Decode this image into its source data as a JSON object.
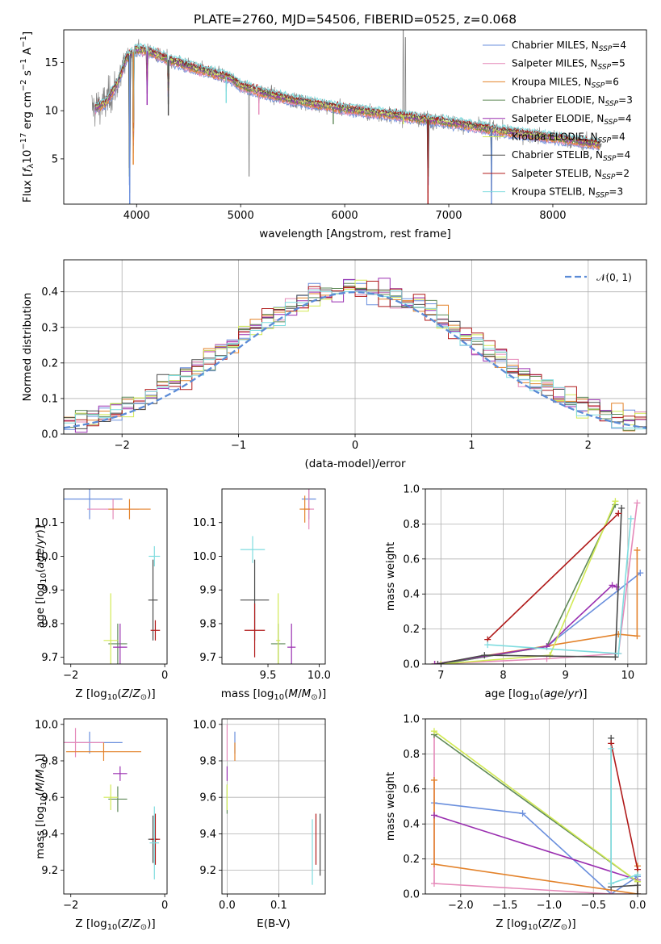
{
  "figure": {
    "title": "PLATE=2760, MJD=54506, FIBERID=0525, z=0.068"
  },
  "models": [
    {
      "name": "Chabrier MILES",
      "nssp": "4",
      "color": "#6a8fdd"
    },
    {
      "name": "Salpeter MILES",
      "nssp": "5",
      "color": "#e589b9"
    },
    {
      "name": "Kroupa MILES",
      "nssp": "6",
      "color": "#e3822a"
    },
    {
      "name": "Chabrier ELODIE",
      "nssp": "3",
      "color": "#5f8a58"
    },
    {
      "name": "Salpeter ELODIE",
      "nssp": "4",
      "color": "#9a2fb0"
    },
    {
      "name": "Kroupa ELODIE",
      "nssp": "4",
      "color": "#d2ea55"
    },
    {
      "name": "Chabrier STELIB",
      "nssp": "4",
      "color": "#4a4a4a"
    },
    {
      "name": "Salpeter STELIB",
      "nssp": "2",
      "color": "#b01a1a"
    },
    {
      "name": "Kroupa STELIB",
      "nssp": "3",
      "color": "#7fdcdf"
    }
  ],
  "chart_data": [
    {
      "id": "spectrum",
      "type": "line",
      "xlabel": "wavelength [Angstrom, rest frame]",
      "ylabel": "Flux [f_λ10^-17 erg cm^-2 s^-1 A^-1]",
      "xlim": [
        3300,
        8900
      ],
      "ylim": [
        0.3,
        18.4
      ],
      "xticks": [
        4000,
        5000,
        6000,
        7000,
        8000
      ],
      "yticks": [
        5,
        10,
        15
      ],
      "data_color": "#808080",
      "continuum": {
        "x": [
          3600,
          3700,
          3800,
          3850,
          3900,
          4000,
          4100,
          4200,
          4300,
          4400,
          4500,
          4700,
          4900,
          5000,
          5200,
          5500,
          6000,
          6500,
          7000,
          7500,
          8000,
          8500
        ],
        "y": [
          10.3,
          10.8,
          12.5,
          13.8,
          15.4,
          16.4,
          16.2,
          15.8,
          15.3,
          15.0,
          14.6,
          14.0,
          13.4,
          12.6,
          11.9,
          11.1,
          10.2,
          9.5,
          8.8,
          7.9,
          7.2,
          6.4
        ]
      },
      "absorption_dips": [
        {
          "x": 3934,
          "y": 0.3
        },
        {
          "x": 3968,
          "y": 4.4
        },
        {
          "x": 4101,
          "y": 10.6
        },
        {
          "x": 4305,
          "y": 9.5
        },
        {
          "x": 4861,
          "y": 10.8
        },
        {
          "x": 5175,
          "y": 9.6
        },
        {
          "x": 5890,
          "y": 8.6
        },
        {
          "x": 6563,
          "y": 8.6
        },
        {
          "x": 6800,
          "y": 0.3
        },
        {
          "x": 7410,
          "y": 0.3
        }
      ],
      "emission_spikes": [
        {
          "x": 6563,
          "y": 18.4
        },
        {
          "x": 6583,
          "y": 17.6
        },
        {
          "x": 5080,
          "y": 3.2
        }
      ]
    },
    {
      "id": "residuals",
      "type": "line",
      "xlabel": "(data-model)/error",
      "ylabel": "Normed distribution",
      "xlim": [
        -2.5,
        2.5
      ],
      "ylim": [
        0.0,
        0.49
      ],
      "xticks": [
        -2,
        -1,
        0,
        1,
        2
      ],
      "yticks": [
        0.0,
        0.1,
        0.2,
        0.3,
        0.4
      ],
      "gaussian_legend": "𝒩(0, 1)",
      "gaussian_color": "#5b8bd6",
      "bins": {
        "start": -2.5,
        "width": 0.1,
        "count": 50
      }
    },
    {
      "id": "age-vs-Z",
      "type": "scatter",
      "xlabel": "Z [log10(Z/Z⊙)]",
      "ylabel": "age  [log10(age/yr)]",
      "xlim": [
        -2.15,
        0.05
      ],
      "ylim": [
        9.68,
        10.2
      ],
      "xticks": [
        -2,
        0
      ],
      "yticks": [
        9.7,
        9.8,
        9.9,
        10.0,
        10.1
      ],
      "points": [
        {
          "model": 0,
          "x": -1.6,
          "y": 10.17,
          "xerr": 0.7,
          "yerr": 0.06
        },
        {
          "model": 1,
          "x": -1.1,
          "y": 10.14,
          "xerr": 0.55,
          "yerr": 0.03
        },
        {
          "model": 2,
          "x": -0.75,
          "y": 10.14,
          "xerr": 0.45,
          "yerr": 0.03
        },
        {
          "model": 3,
          "x": -1.0,
          "y": 9.74,
          "xerr": 0.2,
          "yerr": 0.06
        },
        {
          "model": 4,
          "x": -0.95,
          "y": 9.73,
          "xerr": 0.15,
          "yerr": 0.07
        },
        {
          "model": 5,
          "x": -1.15,
          "y": 9.75,
          "xerr": 0.15,
          "yerr": 0.14
        },
        {
          "model": 6,
          "x": -0.25,
          "y": 9.87,
          "xerr": 0.1,
          "yerr": 0.12
        },
        {
          "model": 7,
          "x": -0.2,
          "y": 9.78,
          "xerr": 0.1,
          "yerr": 0.03
        },
        {
          "model": 8,
          "x": -0.22,
          "y": 10.0,
          "xerr": 0.12,
          "yerr": 0.03
        }
      ]
    },
    {
      "id": "age-vs-mass",
      "type": "scatter",
      "xlabel": "mass [log10(M/M⊙)]",
      "ylabel": "",
      "xlim": [
        9.05,
        10.06
      ],
      "ylim": [
        9.68,
        10.2
      ],
      "xticks": [
        9.5,
        10.0
      ],
      "yticks": [
        9.7,
        9.8,
        9.9,
        10.0,
        10.1
      ],
      "points": [
        {
          "model": 0,
          "x": 9.9,
          "y": 10.17,
          "xerr": 0.07,
          "yerr": 0.06
        },
        {
          "model": 1,
          "x": 9.9,
          "y": 10.14,
          "xerr": 0.05,
          "yerr": 0.06
        },
        {
          "model": 2,
          "x": 9.86,
          "y": 10.14,
          "xerr": 0.05,
          "yerr": 0.04
        },
        {
          "model": 3,
          "x": 9.6,
          "y": 9.74,
          "xerr": 0.07,
          "yerr": 0.06
        },
        {
          "model": 4,
          "x": 9.73,
          "y": 9.73,
          "xerr": 0.04,
          "yerr": 0.07
        },
        {
          "model": 5,
          "x": 9.6,
          "y": 9.75,
          "xerr": 0.02,
          "yerr": 0.14
        },
        {
          "model": 6,
          "x": 9.37,
          "y": 9.87,
          "xerr": 0.14,
          "yerr": 0.12
        },
        {
          "model": 7,
          "x": 9.37,
          "y": 9.78,
          "xerr": 0.1,
          "yerr": 0.08
        },
        {
          "model": 8,
          "x": 9.35,
          "y": 10.02,
          "xerr": 0.12,
          "yerr": 0.04
        }
      ]
    },
    {
      "id": "weight-vs-age",
      "type": "line",
      "xlabel": "age  [log10(age/yr)]",
      "ylabel": "mass weight",
      "xlim": [
        6.75,
        10.3
      ],
      "ylim": [
        0.0,
        1.0
      ],
      "xticks": [
        7,
        8,
        9,
        10
      ],
      "yticks": [
        0.0,
        0.2,
        0.4,
        0.6,
        0.8,
        1.0
      ],
      "series": [
        {
          "model": 0,
          "x": [
            7.0,
            8.7,
            10.2
          ],
          "y": [
            0.0,
            0.1,
            0.52
          ]
        },
        {
          "model": 1,
          "x": [
            6.9,
            8.7,
            9.85,
            10.15
          ],
          "y": [
            0.0,
            0.03,
            0.06,
            0.92
          ]
        },
        {
          "model": 2,
          "x": [
            6.9,
            9.85,
            10.15,
            10.15
          ],
          "y": [
            0.0,
            0.17,
            0.16,
            0.65
          ]
        },
        {
          "model": 3,
          "x": [
            7.0,
            8.7,
            9.8
          ],
          "y": [
            0.0,
            0.1,
            0.91
          ]
        },
        {
          "model": 4,
          "x": [
            6.9,
            8.7,
            9.75,
            9.82
          ],
          "y": [
            0.0,
            0.1,
            0.45,
            0.44
          ]
        },
        {
          "model": 5,
          "x": [
            7.0,
            8.75,
            9.8
          ],
          "y": [
            0.0,
            0.05,
            0.93
          ]
        },
        {
          "model": 6,
          "x": [
            6.95,
            7.7,
            9.8,
            9.9
          ],
          "y": [
            0.0,
            0.05,
            0.04,
            0.89
          ]
        },
        {
          "model": 7,
          "x": [
            7.75,
            9.85
          ],
          "y": [
            0.14,
            0.86
          ]
        },
        {
          "model": 8,
          "x": [
            7.75,
            9.85,
            10.05
          ],
          "y": [
            0.11,
            0.06,
            0.83
          ]
        }
      ]
    },
    {
      "id": "mass-vs-Z",
      "type": "scatter",
      "xlabel": "Z [log10(Z/Z⊙)]",
      "ylabel": "mass [log10(M/M⊙)]",
      "xlim": [
        -2.15,
        0.05
      ],
      "ylim": [
        9.07,
        10.03
      ],
      "xticks": [
        -2,
        0
      ],
      "yticks": [
        9.2,
        9.4,
        9.6,
        9.8,
        10.0
      ],
      "points": [
        {
          "model": 0,
          "x": -1.6,
          "y": 9.9,
          "xerr": 0.7,
          "yerr": 0.06
        },
        {
          "model": 1,
          "x": -1.9,
          "y": 9.9,
          "xerr": 0.6,
          "yerr": 0.08
        },
        {
          "model": 2,
          "x": -1.3,
          "y": 9.85,
          "xerr": 0.8,
          "yerr": 0.05
        },
        {
          "model": 3,
          "x": -1.0,
          "y": 9.59,
          "xerr": 0.2,
          "yerr": 0.07
        },
        {
          "model": 4,
          "x": -0.95,
          "y": 9.73,
          "xerr": 0.15,
          "yerr": 0.04
        },
        {
          "model": 5,
          "x": -1.15,
          "y": 9.6,
          "xerr": 0.15,
          "yerr": 0.07
        },
        {
          "model": 6,
          "x": -0.25,
          "y": 9.37,
          "xerr": 0.1,
          "yerr": 0.13
        },
        {
          "model": 7,
          "x": -0.2,
          "y": 9.37,
          "xerr": 0.1,
          "yerr": 0.14
        },
        {
          "model": 8,
          "x": -0.22,
          "y": 9.35,
          "xerr": 0.1,
          "yerr": 0.2
        }
      ]
    },
    {
      "id": "mass-vs-ebv",
      "type": "scatter",
      "xlabel": "E(B-V)",
      "ylabel": "",
      "xlim": [
        -0.01,
        0.19
      ],
      "ylim": [
        9.07,
        10.03
      ],
      "xticks": [
        0.0,
        0.1
      ],
      "yticks": [
        9.2,
        9.4,
        9.6,
        9.8,
        10.0
      ],
      "points": [
        {
          "model": 0,
          "x": 0.015,
          "y": 9.9,
          "yerr": 0.06
        },
        {
          "model": 1,
          "x": 0.0,
          "y": 9.9,
          "yerr": 0.1
        },
        {
          "model": 2,
          "x": 0.015,
          "y": 9.85,
          "yerr": 0.05
        },
        {
          "model": 3,
          "x": 0.0,
          "y": 9.59,
          "yerr": 0.08
        },
        {
          "model": 4,
          "x": 0.0,
          "y": 9.73,
          "yerr": 0.04
        },
        {
          "model": 5,
          "x": 0.0,
          "y": 9.6,
          "yerr": 0.07
        },
        {
          "model": 6,
          "x": 0.18,
          "y": 9.34,
          "yerr": 0.17
        },
        {
          "model": 7,
          "x": 0.172,
          "y": 9.37,
          "yerr": 0.14
        },
        {
          "model": 8,
          "x": 0.165,
          "y": 9.3,
          "yerr": 0.18
        }
      ]
    },
    {
      "id": "weight-vs-Z",
      "type": "line",
      "xlabel": "Z [log10(Z/Z⊙)]",
      "ylabel": "mass weight",
      "xlim": [
        -2.4,
        0.1
      ],
      "ylim": [
        0.0,
        1.0
      ],
      "xticks": [
        -2.0,
        -1.5,
        -1.0,
        -0.5,
        0.0
      ],
      "yticks": [
        0.0,
        0.2,
        0.4,
        0.6,
        0.8,
        1.0
      ],
      "series": [
        {
          "model": 0,
          "x": [
            -2.3,
            -1.3,
            -0.3,
            0.0
          ],
          "y": [
            0.52,
            0.46,
            0.0,
            0.1
          ]
        },
        {
          "model": 1,
          "x": [
            -2.3,
            -2.3,
            -0.3,
            0.0
          ],
          "y": [
            0.91,
            0.06,
            0.0,
            0.0
          ]
        },
        {
          "model": 2,
          "x": [
            -2.3,
            -2.3,
            0.0,
            0.0
          ],
          "y": [
            0.65,
            0.17,
            0.0,
            0.16
          ]
        },
        {
          "model": 3,
          "x": [
            -2.3,
            0.0
          ],
          "y": [
            0.91,
            0.07
          ]
        },
        {
          "model": 4,
          "x": [
            -2.3,
            0.0
          ],
          "y": [
            0.45,
            0.08
          ]
        },
        {
          "model": 5,
          "x": [
            -2.3,
            0.0
          ],
          "y": [
            0.93,
            0.07
          ]
        },
        {
          "model": 6,
          "x": [
            -0.3,
            -0.3,
            0.0,
            0.0
          ],
          "y": [
            0.89,
            0.04,
            0.05,
            0.0
          ]
        },
        {
          "model": 7,
          "x": [
            -0.3,
            0.0
          ],
          "y": [
            0.86,
            0.14
          ]
        },
        {
          "model": 8,
          "x": [
            -0.3,
            -0.3,
            0.0
          ],
          "y": [
            0.83,
            0.06,
            0.11
          ]
        }
      ]
    }
  ]
}
